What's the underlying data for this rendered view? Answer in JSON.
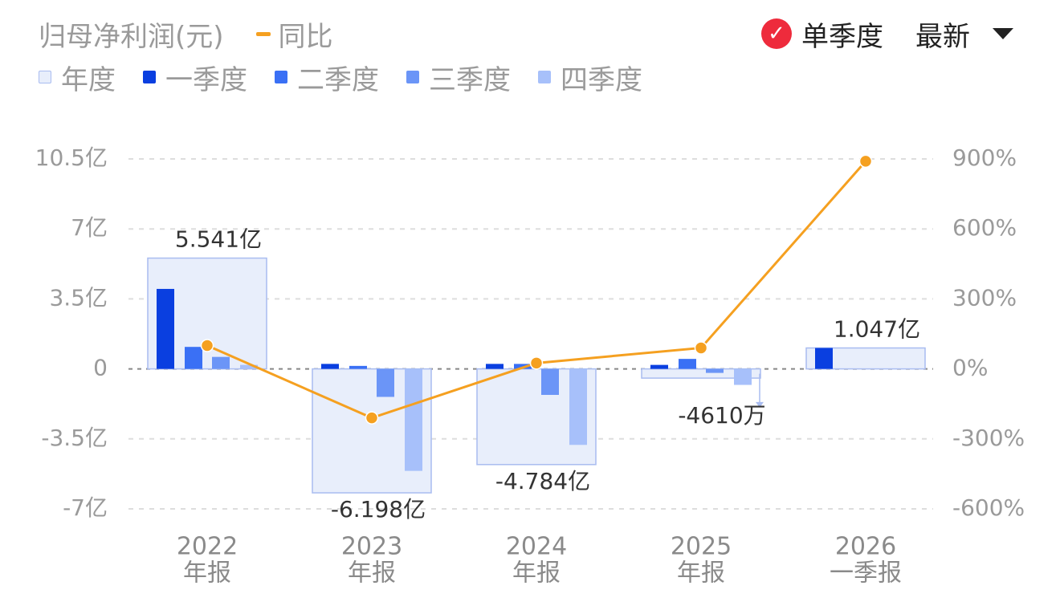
{
  "header": {
    "metric_label": "归母净利润(元)",
    "yoy_label": "同比",
    "single_quarter_label": "单季度",
    "latest_label": "最新"
  },
  "legend": [
    {
      "key": "annual",
      "label": "年度",
      "color": "#e8eefb",
      "border": "#a9bcf0"
    },
    {
      "key": "q1",
      "label": "一季度",
      "color": "#0a3fe0"
    },
    {
      "key": "q2",
      "label": "二季度",
      "color": "#3a70f5"
    },
    {
      "key": "q3",
      "label": "三季度",
      "color": "#6b95f7"
    },
    {
      "key": "q4",
      "label": "四季度",
      "color": "#a7c0fa"
    }
  ],
  "colors": {
    "yoy_line": "#f5a020",
    "grid": "#dddddd",
    "zero": "#888888",
    "annual_fill": "#e8eefb",
    "annual_border": "#a9bcf0"
  },
  "chart_data": {
    "type": "bar",
    "categories": [
      {
        "line1": "2022",
        "line2": "年报"
      },
      {
        "line1": "2023",
        "line2": "年报"
      },
      {
        "line1": "2024",
        "line2": "年报"
      },
      {
        "line1": "2025",
        "line2": "年报"
      },
      {
        "line1": "2026",
        "line2": "一季报"
      }
    ],
    "ylim_left": [
      -7,
      10.5
    ],
    "ylim_right": [
      -600,
      900
    ],
    "left_ticks": [
      {
        "v": 10.5,
        "label": "10.5亿"
      },
      {
        "v": 7,
        "label": "7亿"
      },
      {
        "v": 3.5,
        "label": "3.5亿"
      },
      {
        "v": 0,
        "label": "0"
      },
      {
        "v": -3.5,
        "label": "-3.5亿"
      },
      {
        "v": -7,
        "label": "-7亿"
      }
    ],
    "right_ticks": [
      {
        "v": 900,
        "label": "900%"
      },
      {
        "v": 600,
        "label": "600%"
      },
      {
        "v": 300,
        "label": "300%"
      },
      {
        "v": 0,
        "label": "0%"
      },
      {
        "v": -300,
        "label": "-300%"
      },
      {
        "v": -600,
        "label": "-600%"
      }
    ],
    "annual": [
      {
        "value": 5.541,
        "label": "5.541亿"
      },
      {
        "value": -6.198,
        "label": "-6.198亿"
      },
      {
        "value": -4.784,
        "label": "-4.784亿"
      },
      {
        "value": -0.461,
        "label": "-4610万"
      },
      {
        "value": 1.047,
        "label": "1.047亿"
      }
    ],
    "series": [
      {
        "name": "一季度",
        "values": [
          4.0,
          0.25,
          0.25,
          0.2,
          1.047
        ]
      },
      {
        "name": "二季度",
        "values": [
          1.1,
          0.15,
          0.25,
          0.5,
          null
        ]
      },
      {
        "name": "三季度",
        "values": [
          0.6,
          -1.4,
          -1.3,
          -0.2,
          null
        ]
      },
      {
        "name": "四季度",
        "values": [
          0.2,
          -5.1,
          -3.8,
          -0.8,
          null
        ]
      }
    ],
    "yoy": [
      100,
      -210,
      25,
      90,
      890
    ]
  }
}
